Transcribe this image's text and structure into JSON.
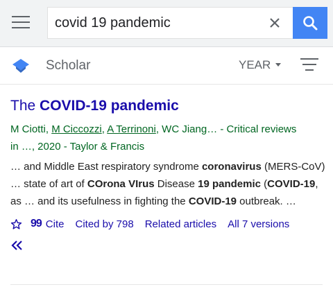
{
  "header": {
    "menu_icon": "hamburger-menu-icon",
    "search_value": "covid 19 pandemic",
    "clear_icon": "close-icon",
    "search_icon": "magnifier-icon",
    "accent_color": "#4285f4"
  },
  "subheader": {
    "logo_icon": "scholar-cap-icon",
    "label": "Scholar",
    "year_label": "YEAR",
    "filter_icon": "filter-lines-icon"
  },
  "result": {
    "title_prefix": "The ",
    "title_bold": "COVID-19 pandemic",
    "authors": [
      {
        "text": "M Ciotti",
        "link": false
      },
      {
        "text": "M Ciccozzi",
        "link": true
      },
      {
        "text": "A Terrinoni",
        "link": true
      },
      {
        "text": "WC Jiang",
        "link": false
      }
    ],
    "source_line1": "… - Critical reviews",
    "source_line2": "in …, 2020 - Taylor & Francis",
    "snippet": [
      {
        "t": "… and Middle East respiratory syndrome ",
        "b": false
      },
      {
        "t": "coronavirus",
        "b": true
      },
      {
        "t": " (MERS-CoV) … state of art of ",
        "b": false
      },
      {
        "t": "COrona VIrus",
        "b": true
      },
      {
        "t": " Disease ",
        "b": false
      },
      {
        "t": "19 pandemic",
        "b": true
      },
      {
        "t": " (",
        "b": false
      },
      {
        "t": "COVID-19",
        "b": true
      },
      {
        "t": ", as … and its usefulness in fighting the ",
        "b": false
      },
      {
        "t": "COVID-19",
        "b": true
      },
      {
        "t": " outbreak. …",
        "b": false
      }
    ],
    "actions": {
      "star_icon": "star-outline-icon",
      "cite_icon": "quote-icon",
      "cite_glyph": "99",
      "cite_label": "Cite",
      "cited_by": "Cited by 798",
      "related": "Related articles",
      "versions": "All 7 versions",
      "more_icon": "double-chevron-icon"
    }
  }
}
